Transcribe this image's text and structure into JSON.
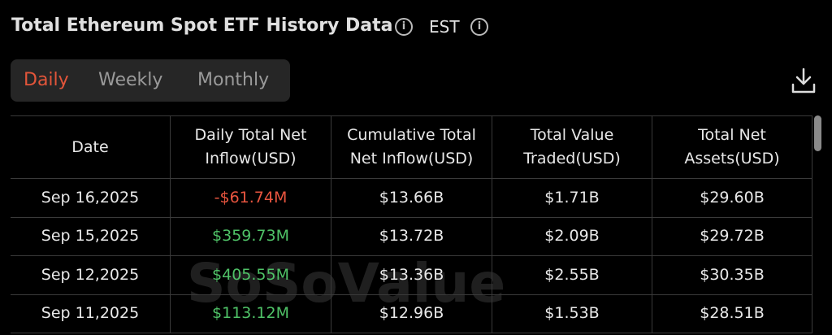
{
  "header": {
    "title": "Total Ethereum Spot ETF History Data",
    "timezone": "EST"
  },
  "tabs": [
    "Daily",
    "Weekly",
    "Monthly"
  ],
  "table": {
    "columns": [
      "Date",
      "Daily Total Net Inflow(USD)",
      "Cumulative Total Net Inflow(USD)",
      "Total Value Traded(USD)",
      "Total Net Assets(USD)"
    ],
    "rows": [
      [
        "Sep 16,2025",
        "-$61.74M",
        "$13.66B",
        "$1.71B",
        "$29.60B"
      ],
      [
        "Sep 15,2025",
        "$359.73M",
        "$13.72B",
        "$2.09B",
        "$29.72B"
      ],
      [
        "Sep 12,2025",
        "$405.55M",
        "$13.36B",
        "$2.55B",
        "$30.35B"
      ],
      [
        "Sep 11,2025",
        "$113.12M",
        "$12.96B",
        "$1.53B",
        "$28.51B"
      ]
    ]
  },
  "watermark": "SoSoValue"
}
